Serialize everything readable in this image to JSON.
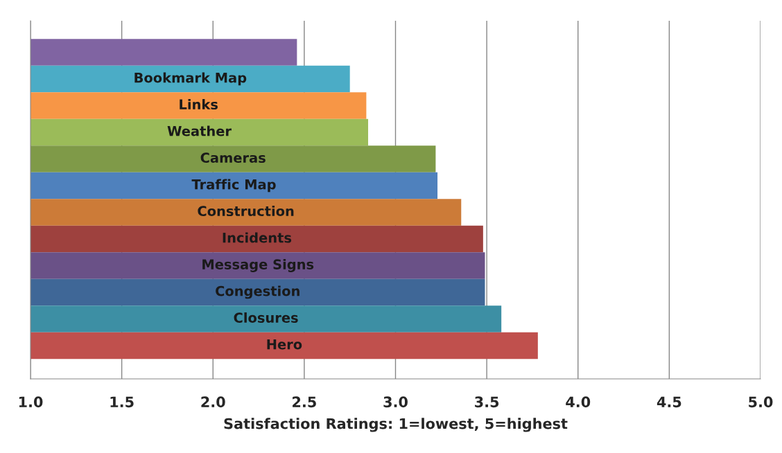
{
  "chart_data": {
    "type": "bar",
    "orientation": "horizontal",
    "xlabel": "Satisfaction Ratings: 1=lowest, 5=highest",
    "categories": [
      null,
      "Bookmark Map",
      "Links",
      "Weather",
      "Cameras",
      "Traffic Map",
      "Construction",
      "Incidents",
      "Message Signs",
      "Congestion",
      "Closures",
      "Hero"
    ],
    "values": [
      2.46,
      2.75,
      2.84,
      2.85,
      3.22,
      3.23,
      3.36,
      3.48,
      3.49,
      3.49,
      3.58,
      3.78
    ],
    "colors": [
      "#8064a2",
      "#4bacc6",
      "#f79646",
      "#9bbb59",
      "#7f9a48",
      "#4f81bd",
      "#cc7b38",
      "#9e413e",
      "#6a5187",
      "#3f6797",
      "#3d8fa4",
      "#c0504d"
    ],
    "xlim": [
      1,
      5
    ],
    "xticks": [
      {
        "value": 1,
        "label": "1.0"
      },
      {
        "value": 1.5,
        "label": "1.5"
      },
      {
        "value": 2,
        "label": "2.0"
      },
      {
        "value": 2.5,
        "label": "2.5"
      },
      {
        "value": 3,
        "label": "3.0"
      },
      {
        "value": 3.5,
        "label": "3.5"
      },
      {
        "value": 4,
        "label": "4.0"
      },
      {
        "value": 4.5,
        "label": "4.5"
      },
      {
        "value": 5,
        "label": "5.0"
      }
    ],
    "grid": "x",
    "legend": false
  }
}
